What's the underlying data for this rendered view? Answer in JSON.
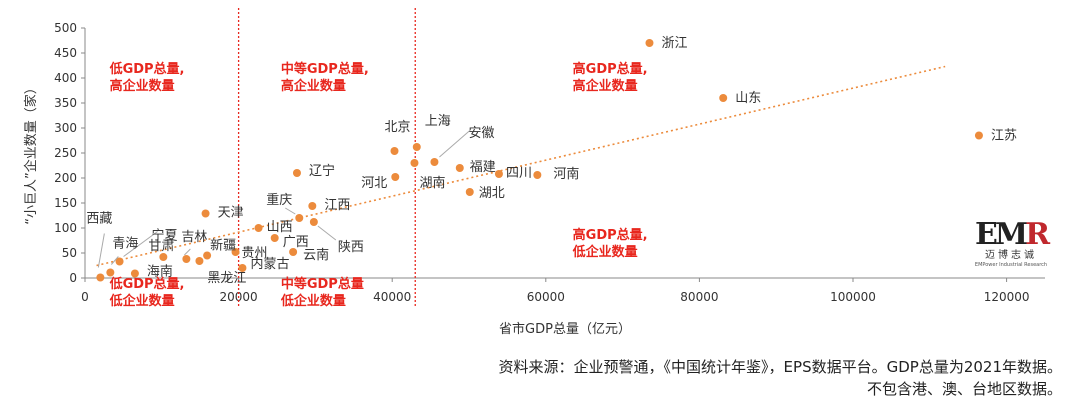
{
  "chart_data": {
    "type": "scatter",
    "xlabel": "省市GDP总量（亿元）",
    "ylabel": "“小巨人”企业数量（家）",
    "xlim": [
      0,
      125000
    ],
    "ylim": [
      0,
      500
    ],
    "xticks": [
      0,
      20000,
      40000,
      60000,
      80000,
      100000,
      120000
    ],
    "yticks": [
      0,
      50,
      100,
      150,
      200,
      250,
      300,
      350,
      400,
      450,
      500
    ],
    "vlines": [
      20000,
      43000
    ],
    "trendline": {
      "x0": 1500,
      "y0": 25,
      "x1": 112000,
      "y1": 423
    },
    "quadrant_labels": [
      {
        "lines": [
          "低GDP总量,",
          "高企业数量"
        ],
        "x": 3200,
        "y": 410
      },
      {
        "lines": [
          "中等GDP总量,",
          "高企业数量"
        ],
        "x": 25500,
        "y": 410
      },
      {
        "lines": [
          "高GDP总量,",
          "高企业数量"
        ],
        "x": 63500,
        "y": 410
      },
      {
        "lines": [
          "高GDP总量,",
          "低企业数量"
        ],
        "x": 63500,
        "y": 78
      },
      {
        "lines": [
          "低GDP总量,",
          "低企业数量"
        ],
        "x": 3200,
        "y": -20
      },
      {
        "lines": [
          "中等GDP总量",
          "低企业数量"
        ],
        "x": 25500,
        "y": -20
      }
    ],
    "points": [
      {
        "label": "浙江",
        "x": 73500,
        "y": 470
      },
      {
        "label": "山东",
        "x": 83100,
        "y": 360
      },
      {
        "label": "江苏",
        "x": 116400,
        "y": 285
      },
      {
        "label": "北京",
        "x": 40300,
        "y": 254
      },
      {
        "label": "上海",
        "x": 43200,
        "y": 262
      },
      {
        "label": "安徽",
        "x": 45500,
        "y": 232
      },
      {
        "label": "福建",
        "x": 48800,
        "y": 220
      },
      {
        "label": "湖南",
        "x": 42900,
        "y": 230
      },
      {
        "label": "四川",
        "x": 53900,
        "y": 208
      },
      {
        "label": "河南",
        "x": 58900,
        "y": 206
      },
      {
        "label": "湖北",
        "x": 50100,
        "y": 172
      },
      {
        "label": "河北",
        "x": 40400,
        "y": 202
      },
      {
        "label": "辽宁",
        "x": 27600,
        "y": 210
      },
      {
        "label": "重庆",
        "x": 27900,
        "y": 120
      },
      {
        "label": "江西",
        "x": 29600,
        "y": 144
      },
      {
        "label": "陕西",
        "x": 29800,
        "y": 112
      },
      {
        "label": "天津",
        "x": 15700,
        "y": 129
      },
      {
        "label": "山西",
        "x": 22600,
        "y": 100
      },
      {
        "label": "广西",
        "x": 24700,
        "y": 80
      },
      {
        "label": "云南",
        "x": 27100,
        "y": 52
      },
      {
        "label": "贵州",
        "x": 19600,
        "y": 52
      },
      {
        "label": "内蒙古",
        "x": 20500,
        "y": 20
      },
      {
        "label": "吉林",
        "x": 13200,
        "y": 38
      },
      {
        "label": "新疆",
        "x": 15900,
        "y": 45
      },
      {
        "label": "黑龙江",
        "x": 14900,
        "y": 34
      },
      {
        "label": "甘肃",
        "x": 10200,
        "y": 42
      },
      {
        "label": "宁夏",
        "x": 4500,
        "y": 33
      },
      {
        "label": "青海",
        "x": 3300,
        "y": 11
      },
      {
        "label": "海南",
        "x": 6500,
        "y": 9
      },
      {
        "label": "西藏",
        "x": 2000,
        "y": 1
      }
    ]
  },
  "source": {
    "line1": "资料来源：企业预警通，《中国统计年鉴》，EPS数据平台。GDP总量为2021年数据。",
    "line2": "不包含港、澳、台地区数据。"
  },
  "logo": {
    "mark": "EMR",
    "cn": "迈博志诚",
    "en": "EMPower Industrial Research"
  },
  "colors": {
    "point": "#ec8b3c",
    "trend": "#ec8b3c",
    "quadrant_text": "#e8271e",
    "divider": "#e8271e",
    "axis": "#888888"
  }
}
